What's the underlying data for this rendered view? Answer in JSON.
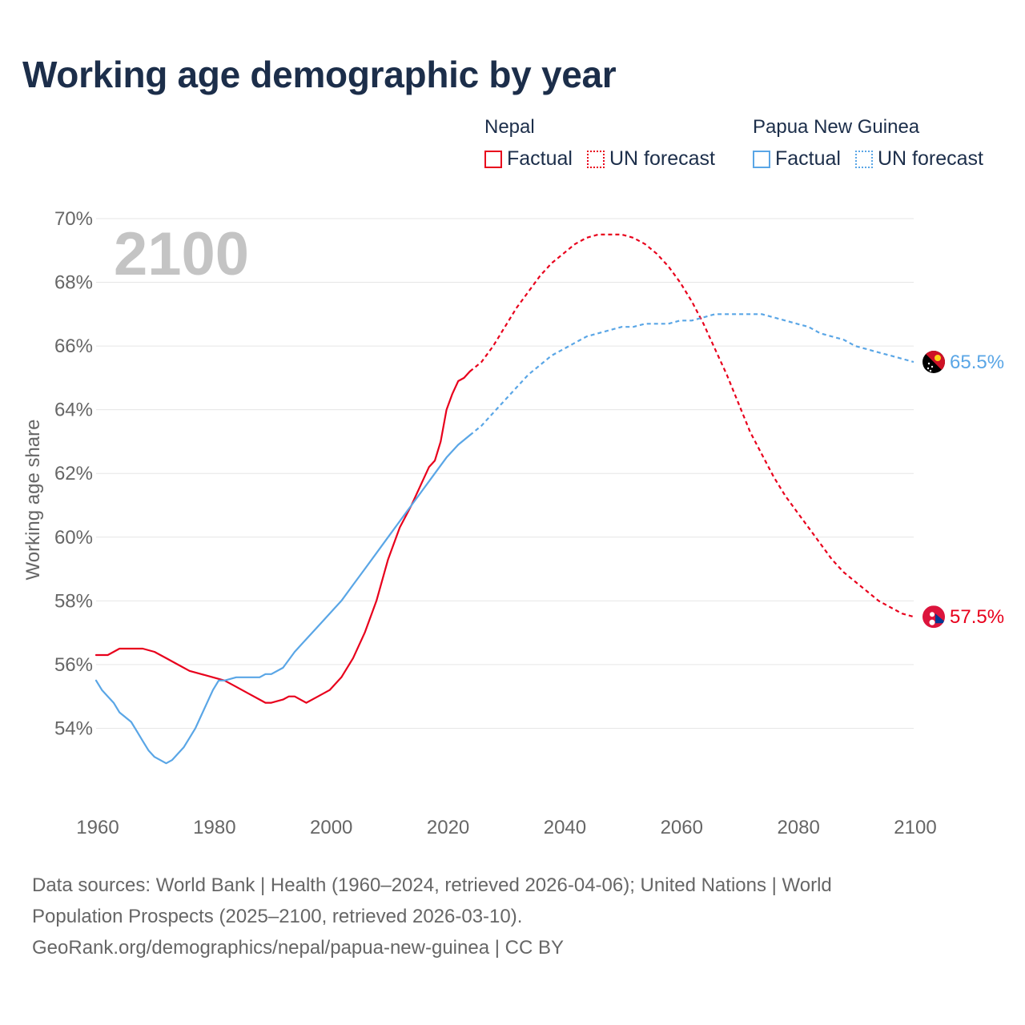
{
  "title": "Working age demographic by year",
  "legend": {
    "groups": [
      {
        "name": "Nepal",
        "color": "#e8001c",
        "items": [
          {
            "label": "Factual",
            "style": "solid"
          },
          {
            "label": "UN forecast",
            "style": "dotted"
          }
        ]
      },
      {
        "name": "Papua New Guinea",
        "color": "#5aa6e6",
        "items": [
          {
            "label": "Factual",
            "style": "solid"
          },
          {
            "label": "UN forecast",
            "style": "dotted"
          }
        ]
      }
    ]
  },
  "year_watermark": "2100",
  "footer": {
    "line1": "Data sources: World Bank | Health (1960–2024, retrieved 2026-04-06); United Nations | World",
    "line2": "Population Prospects (2025–2100, retrieved 2026-03-10).",
    "line3": "GeoRank.org/demographics/nepal/papua-new-guinea | CC BY"
  },
  "chart_data": {
    "type": "line",
    "title": "Working age demographic by year",
    "xlabel": "",
    "ylabel": "Working age share",
    "xlim": [
      1960,
      2100
    ],
    "ylim": [
      52,
      70
    ],
    "x_ticks": [
      1960,
      1980,
      2000,
      2020,
      2040,
      2060,
      2080,
      2100
    ],
    "x_tick_labels": [
      "1960",
      "1980",
      "2000",
      "2020",
      "2040",
      "2060",
      "2080",
      "2100"
    ],
    "y_ticks": [
      54,
      56,
      58,
      60,
      62,
      64,
      66,
      68,
      70
    ],
    "y_tick_labels": [
      "54%",
      "56%",
      "58%",
      "60%",
      "62%",
      "64%",
      "66%",
      "68%",
      "70%"
    ],
    "grid": true,
    "legend_position": "top-right",
    "series": [
      {
        "name": "Nepal",
        "segment": "Factual",
        "color": "#e8001c",
        "style": "solid",
        "x": [
          1960,
          1962,
          1964,
          1966,
          1968,
          1970,
          1972,
          1974,
          1976,
          1978,
          1980,
          1982,
          1984,
          1986,
          1988,
          1989,
          1990,
          1992,
          1993,
          1994,
          1996,
          1998,
          2000,
          2002,
          2004,
          2006,
          2008,
          2010,
          2012,
          2014,
          2016,
          2017,
          2018,
          2019,
          2020,
          2021,
          2022,
          2023,
          2024
        ],
        "values": [
          56.3,
          56.3,
          56.5,
          56.5,
          56.5,
          56.4,
          56.2,
          56.0,
          55.8,
          55.7,
          55.6,
          55.5,
          55.3,
          55.1,
          54.9,
          54.8,
          54.8,
          54.9,
          55.0,
          55.0,
          54.8,
          55.0,
          55.2,
          55.6,
          56.2,
          57.0,
          58.0,
          59.3,
          60.3,
          61.0,
          61.8,
          62.2,
          62.4,
          63.0,
          64.0,
          64.5,
          64.9,
          65.0,
          65.2
        ]
      },
      {
        "name": "Nepal",
        "segment": "UN forecast",
        "color": "#e8001c",
        "style": "dashed",
        "x": [
          2024,
          2026,
          2028,
          2030,
          2032,
          2034,
          2036,
          2038,
          2040,
          2042,
          2044,
          2046,
          2048,
          2050,
          2052,
          2054,
          2056,
          2058,
          2060,
          2062,
          2064,
          2066,
          2068,
          2070,
          2072,
          2074,
          2076,
          2078,
          2080,
          2082,
          2084,
          2086,
          2088,
          2090,
          2092,
          2094,
          2096,
          2098,
          2100
        ],
        "values": [
          65.2,
          65.5,
          66.0,
          66.6,
          67.2,
          67.7,
          68.2,
          68.6,
          68.9,
          69.2,
          69.4,
          69.5,
          69.5,
          69.5,
          69.4,
          69.2,
          68.9,
          68.5,
          68.0,
          67.4,
          66.7,
          65.9,
          65.1,
          64.2,
          63.3,
          62.6,
          61.9,
          61.3,
          60.8,
          60.3,
          59.8,
          59.3,
          58.9,
          58.6,
          58.3,
          58.0,
          57.8,
          57.6,
          57.5
        ]
      },
      {
        "name": "Papua New Guinea",
        "segment": "Factual",
        "color": "#5aa6e6",
        "style": "solid",
        "x": [
          1960,
          1961,
          1962,
          1963,
          1964,
          1966,
          1967,
          1968,
          1969,
          1970,
          1971,
          1972,
          1973,
          1974,
          1975,
          1976,
          1977,
          1978,
          1979,
          1980,
          1981,
          1982,
          1984,
          1986,
          1988,
          1989,
          1990,
          1992,
          1994,
          1996,
          1998,
          2000,
          2002,
          2004,
          2006,
          2008,
          2010,
          2012,
          2014,
          2016,
          2018,
          2020,
          2022,
          2024
        ],
        "values": [
          55.5,
          55.2,
          55.0,
          54.8,
          54.5,
          54.2,
          53.9,
          53.6,
          53.3,
          53.1,
          53.0,
          52.9,
          53.0,
          53.2,
          53.4,
          53.7,
          54.0,
          54.4,
          54.8,
          55.2,
          55.5,
          55.5,
          55.6,
          55.6,
          55.6,
          55.7,
          55.7,
          55.9,
          56.4,
          56.8,
          57.2,
          57.6,
          58.0,
          58.5,
          59.0,
          59.5,
          60.0,
          60.5,
          61.0,
          61.5,
          62.0,
          62.5,
          62.9,
          63.2
        ]
      },
      {
        "name": "Papua New Guinea",
        "segment": "UN forecast",
        "color": "#5aa6e6",
        "style": "dashed",
        "x": [
          2024,
          2026,
          2028,
          2030,
          2032,
          2034,
          2036,
          2038,
          2040,
          2042,
          2044,
          2046,
          2048,
          2050,
          2052,
          2054,
          2056,
          2058,
          2060,
          2062,
          2064,
          2066,
          2068,
          2070,
          2072,
          2074,
          2076,
          2078,
          2080,
          2082,
          2084,
          2086,
          2088,
          2090,
          2092,
          2094,
          2096,
          2098,
          2100
        ],
        "values": [
          63.2,
          63.5,
          63.9,
          64.3,
          64.7,
          65.1,
          65.4,
          65.7,
          65.9,
          66.1,
          66.3,
          66.4,
          66.5,
          66.6,
          66.6,
          66.7,
          66.7,
          66.7,
          66.8,
          66.8,
          66.9,
          67.0,
          67.0,
          67.0,
          67.0,
          67.0,
          66.9,
          66.8,
          66.7,
          66.6,
          66.4,
          66.3,
          66.2,
          66.0,
          65.9,
          65.8,
          65.7,
          65.6,
          65.5
        ]
      }
    ],
    "end_labels": [
      {
        "name": "Papua New Guinea",
        "value": 65.5,
        "label": "65.5%",
        "color": "#5aa6e6",
        "flag": "papua-new-guinea-flag-icon"
      },
      {
        "name": "Nepal",
        "value": 57.5,
        "label": "57.5%",
        "color": "#e8001c",
        "flag": "nepal-flag-icon"
      }
    ]
  }
}
